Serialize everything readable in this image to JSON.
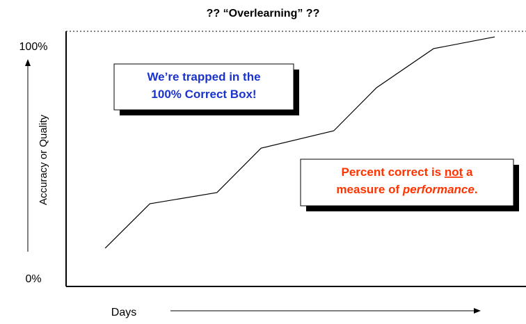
{
  "chart_data": {
    "type": "line",
    "title": "?? “Overlearning” ??",
    "ylabel": "Accuracy or Quality",
    "xlabel": "Days",
    "x": [
      8.5,
      18.2,
      32.8,
      42.4,
      58.2,
      67.5,
      79.9,
      93.2
    ],
    "xlim": [
      0,
      100
    ],
    "series": [
      {
        "color": "#000000",
        "values": [
          15,
          32.4,
          36.8,
          54.2,
          61,
          77.9,
          93.2,
          97.8
        ]
      }
    ],
    "ylim": [
      0,
      100
    ],
    "yticks": [
      {
        "value": 0,
        "label": "0%"
      },
      {
        "value": 100,
        "label": "100%"
      }
    ],
    "annotations": [
      {
        "color": "#1a33cc",
        "lines": [
          [
            "We’re trapped in the"
          ],
          [
            "100% Correct Box!"
          ]
        ]
      },
      {
        "color": "#ff3300",
        "lines": [
          [
            "Percent correct is ",
            "not",
            " a"
          ],
          [
            "measure of ",
            "performance",
            "."
          ]
        ]
      }
    ]
  }
}
